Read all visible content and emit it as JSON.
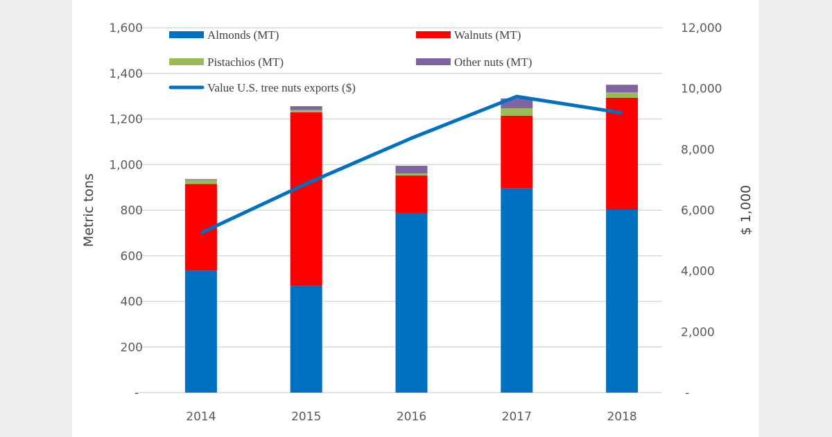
{
  "chart_data": {
    "type": "bar",
    "stacked": true,
    "categories": [
      "2014",
      "2015",
      "2016",
      "2017",
      "2018"
    ],
    "series": [
      {
        "name": "Almonds (MT)",
        "color": "#0070c0",
        "axis": "left",
        "values": [
          535,
          468,
          788,
          897,
          803
        ]
      },
      {
        "name": "Walnuts (MT)",
        "color": "#ff0000",
        "axis": "left",
        "values": [
          380,
          761,
          164,
          317,
          490
        ]
      },
      {
        "name": "Pistachios (MT)",
        "color": "#9bbb59",
        "axis": "left",
        "values": [
          17,
          10,
          9,
          33,
          24
        ]
      },
      {
        "name": "Other nuts (MT)",
        "color": "#8064a2",
        "axis": "left",
        "values": [
          4,
          17,
          34,
          43,
          33
        ]
      }
    ],
    "line_series": [
      {
        "name": "Value U.S. tree nuts exports ($)",
        "color": "#0070c0",
        "axis": "right",
        "type": "line",
        "values": [
          5250,
          6870,
          8370,
          9740,
          9200
        ]
      }
    ],
    "ylabel": "Metric tons",
    "y2label": "$ 1,000",
    "ylim": [
      0,
      1600
    ],
    "y2lim": [
      0,
      12000
    ],
    "yticks": [
      "-",
      "200",
      "400",
      "600",
      "800",
      "1,000",
      "1,200",
      "1,400",
      "1,600"
    ],
    "y2ticks": [
      "-",
      "2,000",
      "4,000",
      "6,000",
      "8,000",
      "10,000",
      "12,000"
    ],
    "grid": true,
    "legend_placement": "top-left, inside plot"
  }
}
